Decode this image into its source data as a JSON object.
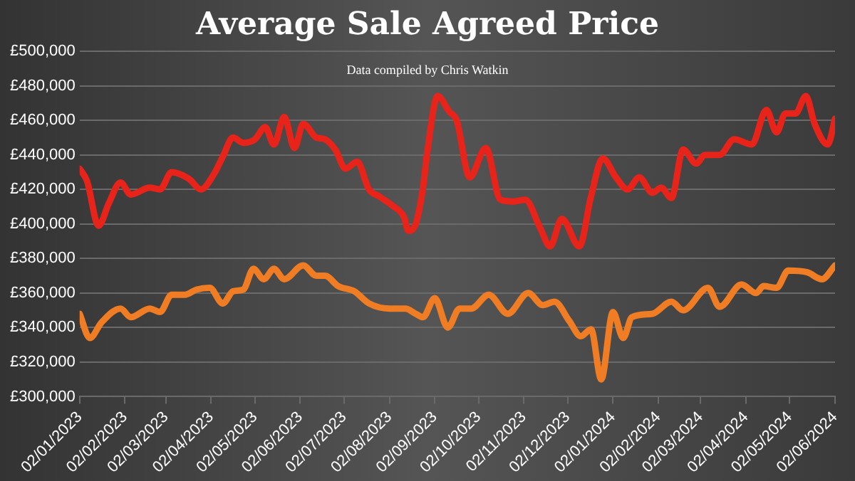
{
  "chart_data": {
    "type": "line",
    "title": "Average Sale Agreed Price",
    "annotations": [
      "Data compiled by Chris Watkin"
    ],
    "grid": "y",
    "legend": false,
    "marker": "none",
    "line_style": "solid",
    "xlim": [
      "2023-01-02",
      "2024-06-02"
    ],
    "xticks": [
      {
        "value": "2023-01-02",
        "label": "02/01/2023"
      },
      {
        "value": "2023-02-02",
        "label": "02/02/2023"
      },
      {
        "value": "2023-03-02",
        "label": "02/03/2023"
      },
      {
        "value": "2023-04-02",
        "label": "02/04/2023"
      },
      {
        "value": "2023-05-02",
        "label": "02/05/2023"
      },
      {
        "value": "2023-06-02",
        "label": "02/06/2023"
      },
      {
        "value": "2023-07-02",
        "label": "02/07/2023"
      },
      {
        "value": "2023-08-02",
        "label": "02/08/2023"
      },
      {
        "value": "2023-09-02",
        "label": "02/09/2023"
      },
      {
        "value": "2023-10-02",
        "label": "02/10/2023"
      },
      {
        "value": "2023-11-02",
        "label": "02/11/2023"
      },
      {
        "value": "2023-12-02",
        "label": "02/12/2023"
      },
      {
        "value": "2024-01-02",
        "label": "02/01/2024"
      },
      {
        "value": "2024-02-02",
        "label": "02/02/2024"
      },
      {
        "value": "2024-03-02",
        "label": "02/03/2024"
      },
      {
        "value": "2024-04-02",
        "label": "02/04/2024"
      },
      {
        "value": "2024-05-02",
        "label": "02/05/2024"
      },
      {
        "value": "2024-06-02",
        "label": "02/06/2024"
      }
    ],
    "ylim": [
      300000,
      500000
    ],
    "yticks": [
      {
        "value": 300000,
        "label": "£300,000"
      },
      {
        "value": 320000,
        "label": "£320,000"
      },
      {
        "value": 340000,
        "label": "£340,000"
      },
      {
        "value": 360000,
        "label": "£360,000"
      },
      {
        "value": 380000,
        "label": "£380,000"
      },
      {
        "value": 400000,
        "label": "£400,000"
      },
      {
        "value": 420000,
        "label": "£420,000"
      },
      {
        "value": 440000,
        "label": "£440,000"
      },
      {
        "value": 460000,
        "label": "£460,000"
      },
      {
        "value": 480000,
        "label": "£480,000"
      },
      {
        "value": 500000,
        "label": "£500,000"
      }
    ],
    "series": [
      {
        "color": "#e8231a",
        "x": [
          "2023-01-02",
          "2023-01-07",
          "2023-01-15",
          "2023-01-22",
          "2023-01-30",
          "2023-02-06",
          "2023-02-19",
          "2023-02-26",
          "2023-03-06",
          "2023-03-18",
          "2023-03-26",
          "2023-04-04",
          "2023-04-10",
          "2023-04-17",
          "2023-04-24",
          "2023-05-02",
          "2023-05-09",
          "2023-05-15",
          "2023-05-22",
          "2023-05-29",
          "2023-06-04",
          "2023-06-13",
          "2023-06-19",
          "2023-06-26",
          "2023-07-03",
          "2023-07-11",
          "2023-07-19",
          "2023-07-26",
          "2023-08-05",
          "2023-08-12",
          "2023-08-15",
          "2023-08-20",
          "2023-08-25",
          "2023-08-28",
          "2023-09-04",
          "2023-09-12",
          "2023-09-17",
          "2023-09-26",
          "2023-10-07",
          "2023-10-17",
          "2023-10-26",
          "2023-11-03",
          "2023-11-13",
          "2023-11-20",
          "2023-11-28",
          "2023-12-10",
          "2023-12-18",
          "2023-12-26",
          "2024-01-04",
          "2024-01-12",
          "2024-01-20",
          "2024-01-29",
          "2024-02-04",
          "2024-02-11",
          "2024-02-19",
          "2024-02-28",
          "2024-03-05",
          "2024-03-15",
          "2024-03-25",
          "2024-04-06",
          "2024-04-16",
          "2024-04-23",
          "2024-04-29",
          "2024-05-06",
          "2024-05-13",
          "2024-05-19",
          "2024-05-28",
          "2024-06-02"
        ],
        "values": [
          432000,
          425000,
          399000,
          412000,
          424000,
          417000,
          421000,
          420000,
          430000,
          426000,
          420000,
          429000,
          439000,
          450000,
          447000,
          449000,
          456000,
          446000,
          462000,
          444000,
          458000,
          450000,
          449000,
          443000,
          432000,
          436000,
          420000,
          416000,
          410000,
          404000,
          396000,
          400000,
          421000,
          442000,
          474000,
          465000,
          460000,
          427000,
          444000,
          414000,
          413000,
          414000,
          398000,
          387000,
          403000,
          387000,
          416000,
          438000,
          427000,
          420000,
          427000,
          418000,
          421000,
          415000,
          443000,
          435000,
          440000,
          440000,
          449000,
          446000,
          466000,
          453000,
          464000,
          464000,
          474000,
          458000,
          446000,
          461000
        ]
      },
      {
        "color": "#f07d23",
        "x": [
          "2023-01-02",
          "2023-01-09",
          "2023-01-17",
          "2023-01-30",
          "2023-02-06",
          "2023-02-19",
          "2023-02-26",
          "2023-03-06",
          "2023-03-15",
          "2023-03-23",
          "2023-04-01",
          "2023-04-10",
          "2023-04-17",
          "2023-04-24",
          "2023-05-01",
          "2023-05-08",
          "2023-05-15",
          "2023-05-22",
          "2023-06-04",
          "2023-06-13",
          "2023-06-19",
          "2023-06-28",
          "2023-07-09",
          "2023-07-19",
          "2023-08-02",
          "2023-08-13",
          "2023-08-20",
          "2023-08-25",
          "2023-09-02",
          "2023-09-11",
          "2023-09-19",
          "2023-09-27",
          "2023-10-09",
          "2023-10-22",
          "2023-11-05",
          "2023-11-15",
          "2023-11-23",
          "2023-12-03",
          "2023-12-11",
          "2023-12-18",
          "2023-12-25",
          "2024-01-02",
          "2024-01-09",
          "2024-01-15",
          "2024-01-29",
          "2024-02-11",
          "2024-02-19",
          "2024-03-07",
          "2024-03-15",
          "2024-03-30",
          "2024-04-09",
          "2024-04-14",
          "2024-04-23",
          "2024-05-01",
          "2024-05-14",
          "2024-05-24",
          "2024-06-02"
        ],
        "values": [
          348000,
          334000,
          343000,
          351000,
          346000,
          351000,
          349000,
          359000,
          359000,
          362000,
          363000,
          354000,
          361000,
          362000,
          374000,
          368000,
          374000,
          368000,
          376000,
          370000,
          370000,
          364000,
          361000,
          354000,
          351000,
          351000,
          348000,
          346000,
          357000,
          340000,
          351000,
          351000,
          359000,
          348000,
          360000,
          353000,
          355000,
          344000,
          335000,
          339000,
          310000,
          349000,
          334000,
          346000,
          348000,
          355000,
          350000,
          363000,
          352000,
          365000,
          360000,
          364000,
          363000,
          373000,
          372000,
          368000,
          376000
        ]
      }
    ]
  }
}
